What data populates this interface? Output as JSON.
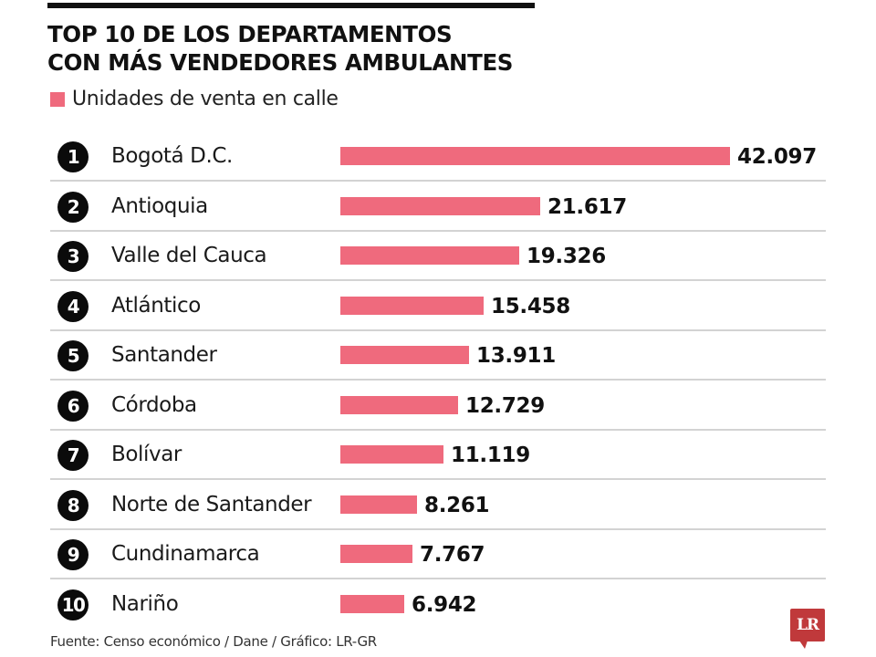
{
  "header": {
    "title_line1": "TOP 10 DE LOS DEPARTAMENTOS",
    "title_line2": "CON MÁS VENDEDORES AMBULANTES"
  },
  "legend": {
    "label": "Unidades de venta en calle",
    "color": "#ef6a7d"
  },
  "colors": {
    "bar": "#ef6a7d",
    "rank_circle": "#0b0b0b",
    "separator": "#d3d3d3",
    "logo": "#c0393b"
  },
  "footer": {
    "source": "Fuente: Censo económico / Dane / Gráfico: LR-GR",
    "logo_text": "LR"
  },
  "chart_data": {
    "type": "bar",
    "orientation": "horizontal",
    "title": "TOP 10 DE LOS DEPARTAMENTOS CON MÁS VENDEDORES AMBULANTES",
    "legend": [
      "Unidades de venta en calle"
    ],
    "legend_position": "top-left",
    "grid": false,
    "xlim": [
      0,
      42097
    ],
    "categories": [
      "Bogotá D.C.",
      "Antioquia",
      "Valle del Cauca",
      "Atlántico",
      "Santander",
      "Córdoba",
      "Bolívar",
      "Norte de Santander",
      "Cundinamarca",
      "Nariño"
    ],
    "ranks": [
      "1",
      "2",
      "3",
      "4",
      "5",
      "6",
      "7",
      "8",
      "9",
      "10"
    ],
    "values": [
      42097,
      21617,
      19326,
      15458,
      13911,
      12729,
      11119,
      8261,
      7767,
      6942
    ],
    "value_labels": [
      "42.097",
      "21.617",
      "19.326",
      "15.458",
      "13.911",
      "12.729",
      "11.119",
      "8.261",
      "7.767",
      "6.942"
    ],
    "source": "Fuente: Censo económico / Dane / Gráfico: LR-GR"
  }
}
